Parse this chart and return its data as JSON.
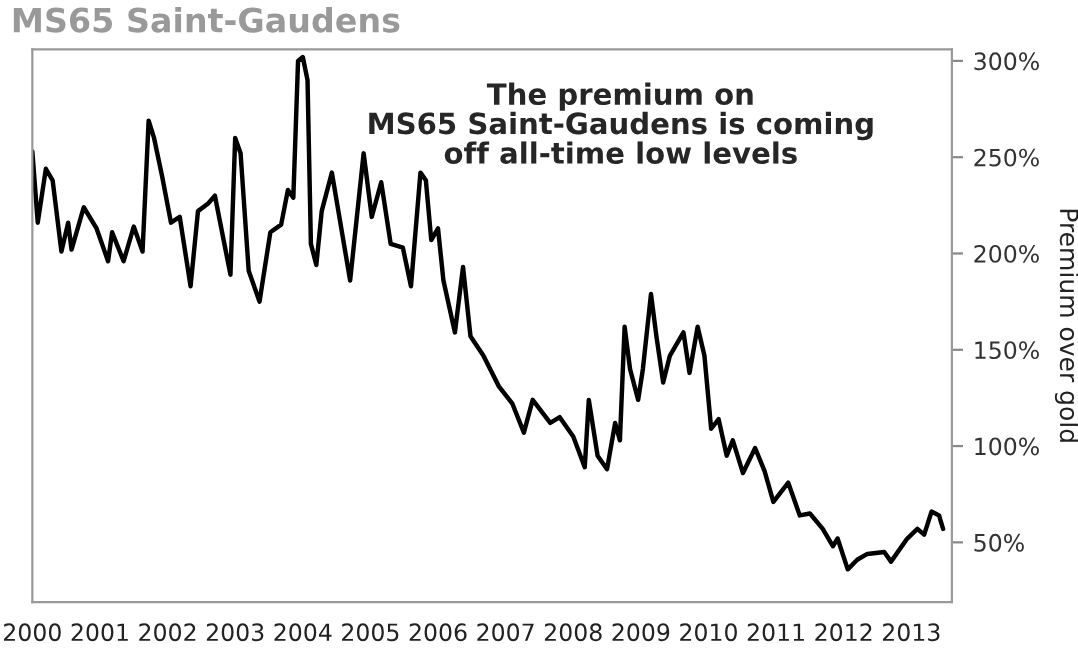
{
  "chart_data": {
    "type": "line",
    "title": "MS65 Saint-Gaudens",
    "ylabel": "Premium over gold",
    "annotations": [
      "The premium on\nMS65 Saint-Gaudens is coming\noff all-time low levels"
    ],
    "x": [
      2000.0,
      2000.08,
      2000.2,
      2000.3,
      2000.43,
      2000.53,
      2000.58,
      2000.76,
      2000.95,
      2001.12,
      2001.18,
      2001.35,
      2001.5,
      2001.63,
      2001.72,
      2001.8,
      2001.92,
      2002.05,
      2002.18,
      2002.34,
      2002.45,
      2002.6,
      2002.7,
      2002.93,
      2003.0,
      2003.08,
      2003.2,
      2003.36,
      2003.52,
      2003.68,
      2003.78,
      2003.86,
      2003.93,
      2004.0,
      2004.07,
      2004.12,
      2004.2,
      2004.28,
      2004.43,
      2004.7,
      2004.9,
      2005.02,
      2005.16,
      2005.3,
      2005.48,
      2005.6,
      2005.74,
      2005.82,
      2005.9,
      2006.0,
      2006.08,
      2006.25,
      2006.37,
      2006.48,
      2006.67,
      2006.9,
      2007.1,
      2007.27,
      2007.4,
      2007.66,
      2007.8,
      2008.0,
      2008.17,
      2008.23,
      2008.36,
      2008.5,
      2008.62,
      2008.69,
      2008.76,
      2008.84,
      2008.96,
      2009.03,
      2009.15,
      2009.23,
      2009.33,
      2009.43,
      2009.63,
      2009.72,
      2009.84,
      2009.94,
      2010.04,
      2010.15,
      2010.27,
      2010.36,
      2010.51,
      2010.69,
      2010.83,
      2010.96,
      2011.18,
      2011.35,
      2011.5,
      2011.69,
      2011.84,
      2011.91,
      2012.06,
      2012.2,
      2012.35,
      2012.6,
      2012.7,
      2012.94,
      2013.09,
      2013.19,
      2013.3,
      2013.41,
      2013.47
    ],
    "values": [
      253,
      216,
      244,
      238,
      201,
      216,
      202,
      224,
      213,
      196,
      211,
      196,
      214,
      201,
      269,
      260,
      240,
      216,
      219,
      183,
      222,
      226,
      230,
      189,
      260,
      252,
      191,
      175,
      211,
      215,
      233,
      229,
      300,
      302,
      290,
      205,
      194,
      222,
      242,
      186,
      252,
      219,
      237,
      205,
      203,
      183,
      242,
      238,
      207,
      213,
      186,
      159,
      193,
      157,
      147,
      131,
      122,
      107,
      124,
      112,
      115,
      105,
      89,
      124,
      95,
      88,
      112,
      103,
      162,
      140,
      124,
      140,
      179,
      157,
      133,
      147,
      159,
      138,
      162,
      147,
      109,
      114,
      95,
      103,
      86,
      99,
      87,
      71,
      81,
      64,
      65,
      57,
      48,
      52,
      36,
      41,
      44,
      45,
      40,
      52,
      57,
      54,
      66,
      64,
      57
    ],
    "color": "#000000",
    "xlim": [
      2000,
      2013.6
    ],
    "xticks": [
      2000,
      2001,
      2002,
      2003,
      2004,
      2005,
      2006,
      2007,
      2008,
      2009,
      2010,
      2011,
      2012,
      2013
    ],
    "ylim": [
      19,
      306
    ],
    "yticks": [
      {
        "value": 50,
        "label": "50%"
      },
      {
        "value": 100,
        "label": "100%"
      },
      {
        "value": 150,
        "label": "150%"
      },
      {
        "value": 200,
        "label": "200%"
      },
      {
        "value": 250,
        "label": "250%"
      },
      {
        "value": 300,
        "label": "300%"
      }
    ],
    "grid": false,
    "legend": false
  }
}
